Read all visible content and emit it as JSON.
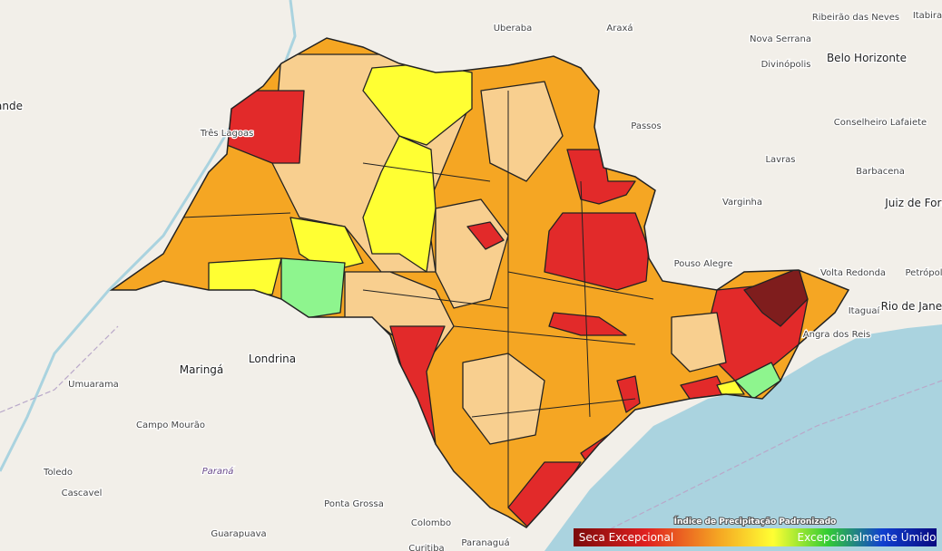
{
  "labels": [
    "ande",
    "Três Lagoas",
    "Uberaba",
    "Araxá",
    "Ribeirão das Neves",
    "Itabira",
    "Nova Serrana",
    "Divinópolis",
    "Belo Horizonte",
    "Passos",
    "Conselheiro Lafaiete",
    "Lavras",
    "Barbacena",
    "Varginha",
    "Juiz de Fora",
    "Pouso Alegre",
    "Volta Redonda",
    "Petrópolis",
    "Itaguaí",
    "Rio de Janeiro",
    "Angra dos Reis",
    "Maringá",
    "Londrina",
    "Umuarama",
    "Campo Mourão",
    "Toledo",
    "Cascavel",
    "Paraná",
    "Ponta Grossa",
    "Guarapuava",
    "Colombo",
    "Paranaguá",
    "Curitiba"
  ],
  "legend": {
    "title": "Índice de Precipitação Padronizado",
    "low": "Seca Excepcional",
    "high": "Excepcionalmente Úmido"
  }
}
